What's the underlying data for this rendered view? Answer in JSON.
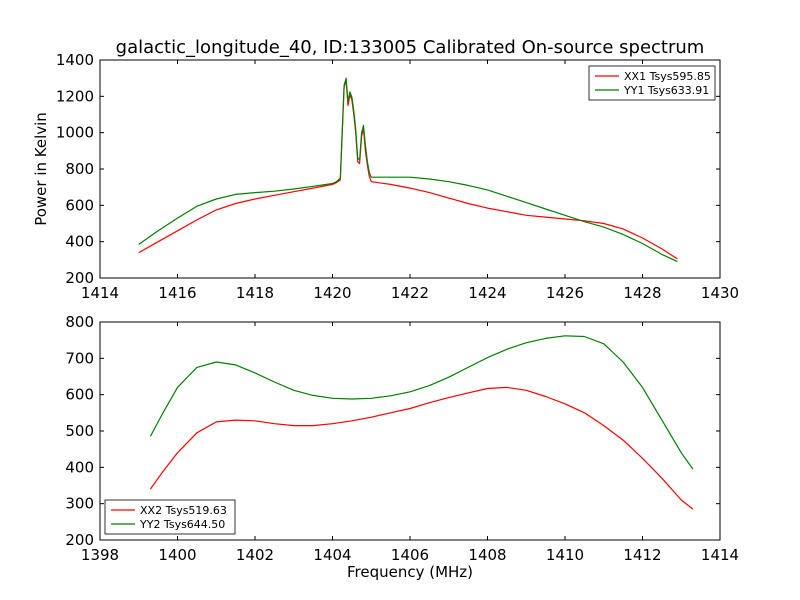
{
  "title": "galactic_longitude_40, ID:133005 Calibrated On-source spectrum",
  "chart_data": [
    {
      "type": "line",
      "title": "galactic_longitude_40, ID:133005 Calibrated On-source spectrum",
      "xlabel": "",
      "ylabel": "Power in Kelvin",
      "xlim": [
        1414,
        1430
      ],
      "ylim": [
        200,
        1400
      ],
      "xticks": [
        "1414",
        "1416",
        "1418",
        "1420",
        "1422",
        "1424",
        "1426",
        "1428",
        "1430"
      ],
      "yticks": [
        "200",
        "400",
        "600",
        "800",
        "1000",
        "1200",
        "1400"
      ],
      "legend_position": "top-right",
      "series": [
        {
          "name": "XX1 Tsys595.85",
          "color": "#ff0000",
          "x": [
            1415.0,
            1415.5,
            1416.0,
            1416.5,
            1417.0,
            1417.5,
            1418.0,
            1418.5,
            1419.0,
            1419.5,
            1420.0,
            1420.1,
            1420.2,
            1420.3,
            1420.35,
            1420.4,
            1420.45,
            1420.5,
            1420.55,
            1420.6,
            1420.65,
            1420.7,
            1420.75,
            1420.8,
            1420.85,
            1420.9,
            1420.95,
            1421.0,
            1421.5,
            1422.0,
            1422.5,
            1423.0,
            1423.5,
            1424.0,
            1424.5,
            1425.0,
            1425.5,
            1426.0,
            1426.5,
            1427.0,
            1427.5,
            1428.0,
            1428.5,
            1428.9
          ],
          "values": [
            340,
            400,
            460,
            520,
            575,
            610,
            635,
            655,
            675,
            695,
            715,
            725,
            740,
            1250,
            1290,
            1150,
            1210,
            1180,
            1100,
            1000,
            840,
            830,
            980,
            1020,
            900,
            820,
            760,
            730,
            715,
            695,
            670,
            640,
            610,
            585,
            565,
            545,
            535,
            525,
            515,
            500,
            470,
            420,
            360,
            305
          ]
        },
        {
          "name": "YY1 Tsys633.91",
          "color": "#008000",
          "x": [
            1415.0,
            1415.5,
            1416.0,
            1416.5,
            1417.0,
            1417.5,
            1418.0,
            1418.5,
            1419.0,
            1419.5,
            1420.0,
            1420.1,
            1420.2,
            1420.3,
            1420.35,
            1420.4,
            1420.45,
            1420.5,
            1420.55,
            1420.6,
            1420.65,
            1420.7,
            1420.75,
            1420.8,
            1420.85,
            1420.9,
            1420.95,
            1421.0,
            1421.5,
            1422.0,
            1422.5,
            1423.0,
            1423.5,
            1424.0,
            1424.5,
            1425.0,
            1425.5,
            1426.0,
            1426.5,
            1427.0,
            1427.5,
            1428.0,
            1428.5,
            1428.9
          ],
          "values": [
            385,
            460,
            530,
            595,
            635,
            660,
            670,
            678,
            690,
            705,
            720,
            730,
            750,
            1260,
            1300,
            1170,
            1225,
            1195,
            1120,
            1020,
            860,
            850,
            1000,
            1040,
            930,
            840,
            780,
            755,
            755,
            755,
            745,
            730,
            710,
            685,
            650,
            615,
            580,
            545,
            510,
            480,
            440,
            390,
            330,
            290
          ]
        }
      ]
    },
    {
      "type": "line",
      "title": "",
      "xlabel": "Frequency (MHz)",
      "ylabel": "",
      "xlim": [
        1398,
        1414
      ],
      "ylim": [
        200,
        800
      ],
      "xticks": [
        "1398",
        "1400",
        "1402",
        "1404",
        "1406",
        "1408",
        "1410",
        "1412",
        "1414"
      ],
      "yticks": [
        "200",
        "300",
        "400",
        "500",
        "600",
        "700",
        "800"
      ],
      "legend_position": "bottom-left",
      "series": [
        {
          "name": "XX2 Tsys519.63",
          "color": "#ff0000",
          "x": [
            1399.3,
            1399.6,
            1400.0,
            1400.5,
            1401.0,
            1401.5,
            1402.0,
            1402.5,
            1403.0,
            1403.5,
            1404.0,
            1404.5,
            1405.0,
            1405.5,
            1406.0,
            1406.5,
            1407.0,
            1407.5,
            1408.0,
            1408.5,
            1409.0,
            1409.5,
            1410.0,
            1410.5,
            1411.0,
            1411.5,
            1412.0,
            1412.5,
            1413.0,
            1413.3
          ],
          "values": [
            340,
            385,
            440,
            495,
            525,
            530,
            528,
            520,
            515,
            515,
            520,
            528,
            538,
            550,
            562,
            578,
            592,
            605,
            617,
            620,
            612,
            595,
            575,
            550,
            515,
            475,
            425,
            370,
            310,
            285
          ]
        },
        {
          "name": "YY2 Tsys644.50",
          "color": "#008000",
          "x": [
            1399.3,
            1399.6,
            1400.0,
            1400.5,
            1401.0,
            1401.5,
            1402.0,
            1402.5,
            1403.0,
            1403.5,
            1404.0,
            1404.5,
            1405.0,
            1405.5,
            1406.0,
            1406.5,
            1407.0,
            1407.5,
            1408.0,
            1408.5,
            1409.0,
            1409.5,
            1410.0,
            1410.5,
            1411.0,
            1411.5,
            1412.0,
            1412.5,
            1413.0,
            1413.3
          ],
          "values": [
            485,
            545,
            620,
            675,
            690,
            682,
            660,
            635,
            612,
            598,
            590,
            588,
            590,
            597,
            608,
            625,
            648,
            675,
            702,
            725,
            743,
            755,
            762,
            760,
            740,
            690,
            620,
            530,
            440,
            395
          ]
        }
      ]
    }
  ]
}
